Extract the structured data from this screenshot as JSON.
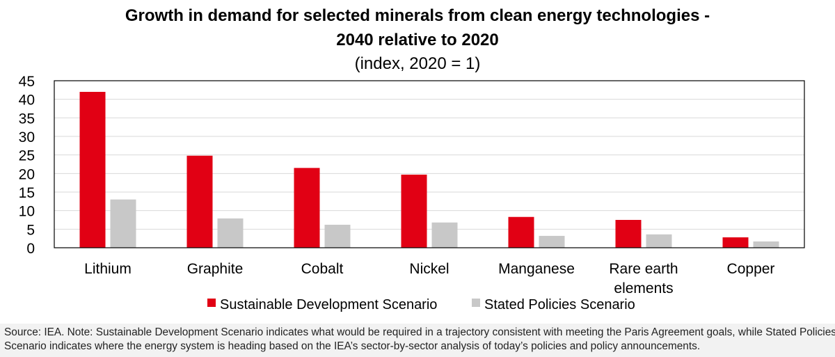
{
  "chart_data": {
    "type": "bar",
    "title_line1": "Growth in demand for selected minerals from clean energy technologies -",
    "title_line2": "2040 relative to 2020",
    "subtitle": "(index, 2020 = 1)",
    "xlabel": "",
    "ylabel": "",
    "ylim": [
      0,
      45
    ],
    "yticks": [
      0,
      5,
      10,
      15,
      20,
      25,
      30,
      35,
      40,
      45
    ],
    "grid": true,
    "legend_position": "bottom-center",
    "categories": [
      [
        "Lithium"
      ],
      [
        "Graphite"
      ],
      [
        "Cobalt"
      ],
      [
        "Nickel"
      ],
      [
        "Manganese"
      ],
      [
        "Rare earth",
        "elements"
      ],
      [
        "Copper"
      ]
    ],
    "series": [
      {
        "name": "Sustainable Development Scenario",
        "color": "#e10014",
        "values": [
          42,
          24.8,
          21.5,
          19.7,
          8.3,
          7.5,
          2.8
        ]
      },
      {
        "name": "Stated Policies Scenario",
        "color": "#c8c8c8",
        "values": [
          13,
          7.9,
          6.2,
          6.8,
          3.2,
          3.6,
          1.7
        ]
      }
    ]
  },
  "footnote": {
    "line1": "Source: IEA. Note: Sustainable Development Scenario indicates what would be required in a trajectory consistent with meeting the Paris Agreement goals, while Stated Policies",
    "line2": "Scenario indicates where the energy system is heading based on the IEA’s sector-by-sector analysis of today’s policies and policy announcements."
  }
}
